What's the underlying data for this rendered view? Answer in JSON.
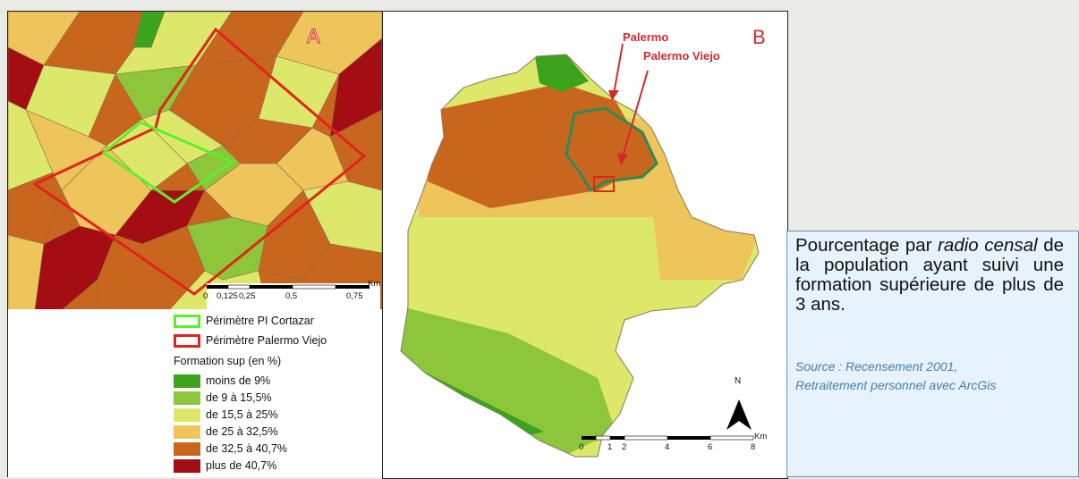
{
  "panel_a": {
    "label": "A",
    "scale": {
      "ticks": [
        "0",
        "0,125",
        "0,25",
        "0,5",
        "0,75"
      ],
      "unit": "Km"
    }
  },
  "panel_b": {
    "label": "B",
    "annotations": {
      "palermo": "Palermo",
      "palermo_viejo": "Palermo Viejo"
    },
    "north": "N",
    "scale": {
      "ticks": [
        "0",
        "1",
        "2",
        "4",
        "6",
        "8"
      ],
      "unit": "Km"
    }
  },
  "legend": {
    "outline_items": [
      {
        "label": "Périmètre PI Cortazar",
        "color": "#5cf02a"
      },
      {
        "label": "Périmètre Palermo Viejo",
        "color": "#e2231a"
      }
    ],
    "title": "Formation sup (en %)",
    "classes": [
      {
        "label": "moins de 9%",
        "color": "#3ca31c"
      },
      {
        "label": "de 9 à 15,5%",
        "color": "#8dc63a"
      },
      {
        "label": "de 15,5 à 25%",
        "color": "#dde86a"
      },
      {
        "label": "de 25 à 32,5%",
        "color": "#eec55a"
      },
      {
        "label": "de 32,5 à 40,7%",
        "color": "#c8661e"
      },
      {
        "label": "plus de 40,7%",
        "color": "#a40e12"
      }
    ]
  },
  "caption": {
    "text_1": "Pourcentage par ",
    "text_italic": "radio censal",
    "text_2": " de la population ayant suivi une formation supérieure de plus de 3 ans.",
    "source_1": "Source : Recensement 2001,",
    "source_2": "Retraitement personnel avec ArcGis"
  }
}
